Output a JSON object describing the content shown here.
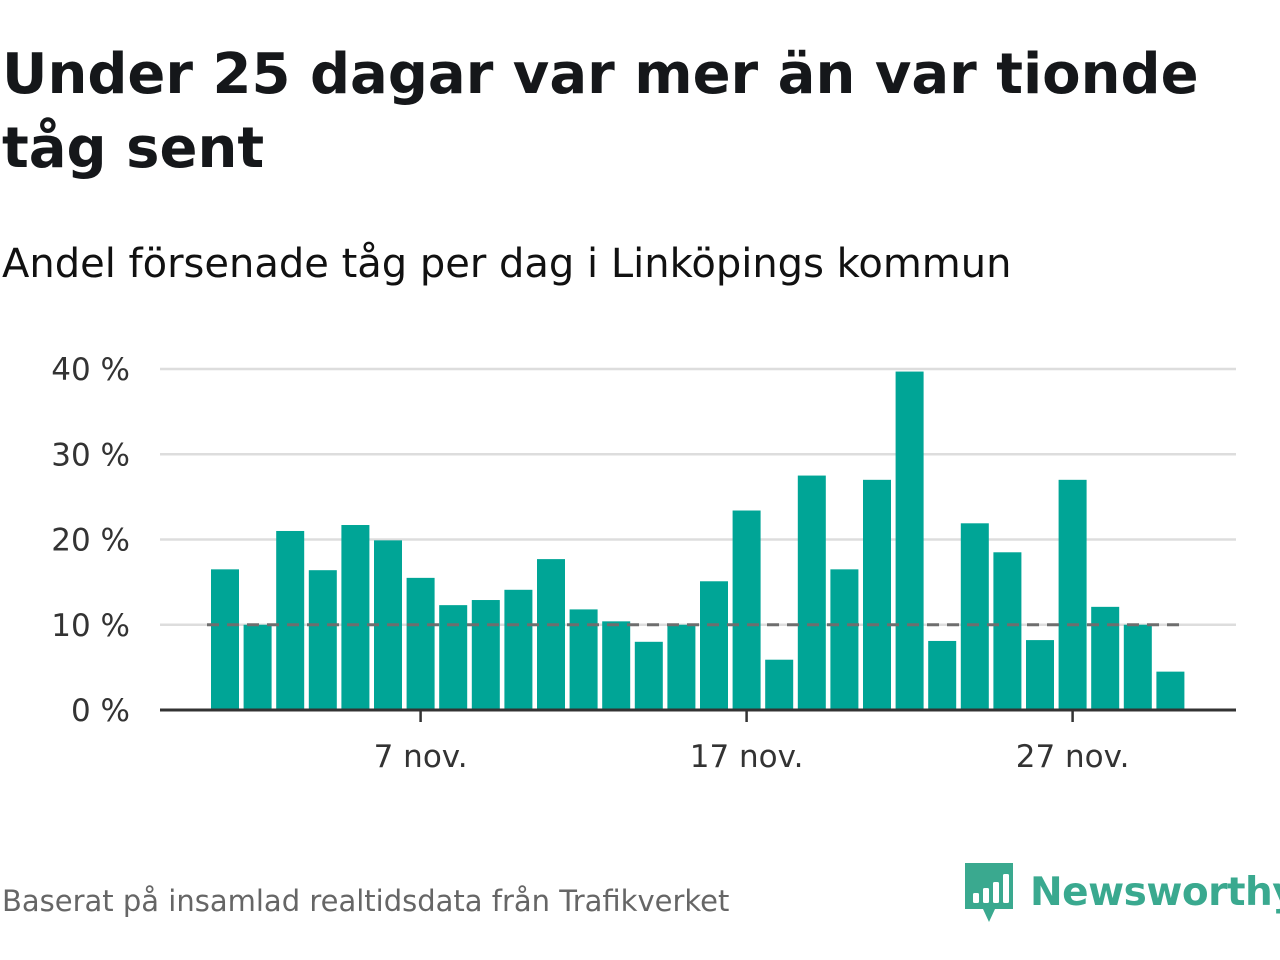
{
  "header": {
    "title": "Under 25 dagar var mer än var tionde tåg sent",
    "subtitle": "Andel försenade tåg per dag i Linköpings kommun"
  },
  "footer": {
    "source": "Baserat på insamlad realtidsdata från Trafikverket",
    "brand": "Newsworthy"
  },
  "colors": {
    "bar": "#00a596",
    "reference_line": "#6e6e6e",
    "grid": "#dddddd",
    "axis": "#333333",
    "brand": "#3aa98f"
  },
  "chart_data": {
    "type": "bar",
    "x": [
      "2023-11-01",
      "2023-11-02",
      "2023-11-03",
      "2023-11-04",
      "2023-11-05",
      "2023-11-06",
      "2023-11-07",
      "2023-11-08",
      "2023-11-09",
      "2023-11-10",
      "2023-11-11",
      "2023-11-12",
      "2023-11-13",
      "2023-11-14",
      "2023-11-15",
      "2023-11-16",
      "2023-11-17",
      "2023-11-18",
      "2023-11-19",
      "2023-11-20",
      "2023-11-21",
      "2023-11-22",
      "2023-11-23",
      "2023-11-24",
      "2023-11-25",
      "2023-11-26",
      "2023-11-27",
      "2023-11-28",
      "2023-11-29",
      "2023-11-30"
    ],
    "values": [
      16.5,
      10.0,
      21.0,
      16.4,
      21.7,
      19.9,
      15.5,
      12.3,
      12.9,
      14.1,
      17.7,
      11.8,
      10.4,
      8.0,
      10.0,
      15.1,
      23.4,
      5.9,
      27.5,
      16.5,
      27.0,
      39.7,
      8.1,
      21.9,
      18.5,
      8.2,
      27.0,
      12.1,
      10.0,
      4.5
    ],
    "reference_line": 10,
    "ylim": [
      0,
      40
    ],
    "yticks": [
      0,
      10,
      20,
      30,
      40
    ],
    "ytick_labels": [
      "0 %",
      "10 %",
      "20 %",
      "30 %",
      "40 %"
    ],
    "xtick_indices": [
      6,
      16,
      26
    ],
    "xtick_labels": [
      "7 nov.",
      "17 nov.",
      "27 nov."
    ],
    "grid": true,
    "legend": "none"
  }
}
